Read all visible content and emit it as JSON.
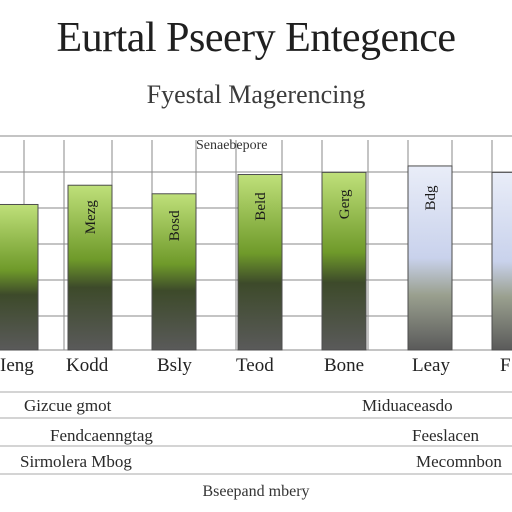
{
  "page": {
    "title": "Eurtal Pseery Entegence",
    "subtitle": "Fyestal Magerencing",
    "legend": "Senaebepore",
    "footer": "Bseepand mbery",
    "notes_left": [
      "Gizcue gmot",
      "Fendcaenngtag",
      "Sirmolera Mbog"
    ],
    "notes_right": [
      "Miduaceasdo",
      "Feeslacen",
      "Mecomnbon"
    ]
  },
  "chart_data": {
    "type": "bar",
    "categories": [
      "Ieng",
      "Kodd",
      "Bsly",
      "Teod",
      "Bone",
      "Leay",
      "F"
    ],
    "values": [
      68,
      77,
      73,
      82,
      83,
      86,
      83
    ],
    "ylim": [
      0,
      100
    ],
    "grid": true,
    "colors": {
      "top": "#6f9a2a",
      "mid": "#bfe07a",
      "bottom": "#5a5a5a",
      "grid": "#8a8a8a",
      "alt": "#c9d2ec"
    },
    "bar_labels": [
      "",
      "Mezg",
      "Bosd",
      "Beld",
      "Gerg",
      "Bdg",
      ""
    ]
  }
}
